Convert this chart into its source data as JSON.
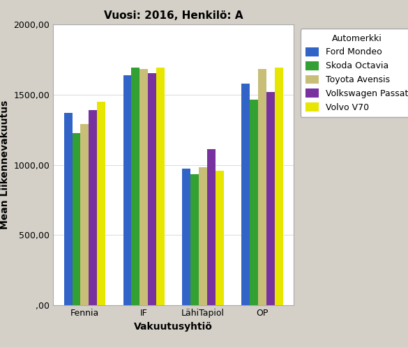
{
  "title": "Vuosi: 2016, Henkilö: A",
  "xlabel": "Vakuutusyhtiö",
  "ylabel": "Mean Liikennevakuutus",
  "legend_title": "Automerkki",
  "categories": [
    "Fennia",
    "IF",
    "LähiTapiol",
    "OP"
  ],
  "series": [
    {
      "label": "Ford Mondeo",
      "color": "#3264c8",
      "values": [
        1370,
        1635,
        975,
        1580
      ]
    },
    {
      "label": "Skoda Octavia",
      "color": "#32a032",
      "values": [
        1225,
        1690,
        935,
        1465
      ]
    },
    {
      "label": "Toyota Avensis",
      "color": "#c8be78",
      "values": [
        1290,
        1680,
        985,
        1680
      ]
    },
    {
      "label": "Volkswagen Passat",
      "color": "#7832a0",
      "values": [
        1390,
        1650,
        1110,
        1520
      ]
    },
    {
      "label": "Volvo V70",
      "color": "#e6e600",
      "values": [
        1450,
        1690,
        960,
        1690
      ]
    }
  ],
  "ylim": [
    0,
    2000
  ],
  "yticks": [
    0,
    500,
    1000,
    1500,
    2000
  ],
  "ytick_labels": [
    ",00",
    "500,00",
    "1000,00",
    "1500,00",
    "2000,00"
  ],
  "fig_bg_color": "#d4d0c8",
  "plot_bg_color": "#ffffff",
  "title_fontsize": 11,
  "axis_label_fontsize": 10,
  "tick_fontsize": 9,
  "legend_fontsize": 9,
  "bar_width": 0.14
}
